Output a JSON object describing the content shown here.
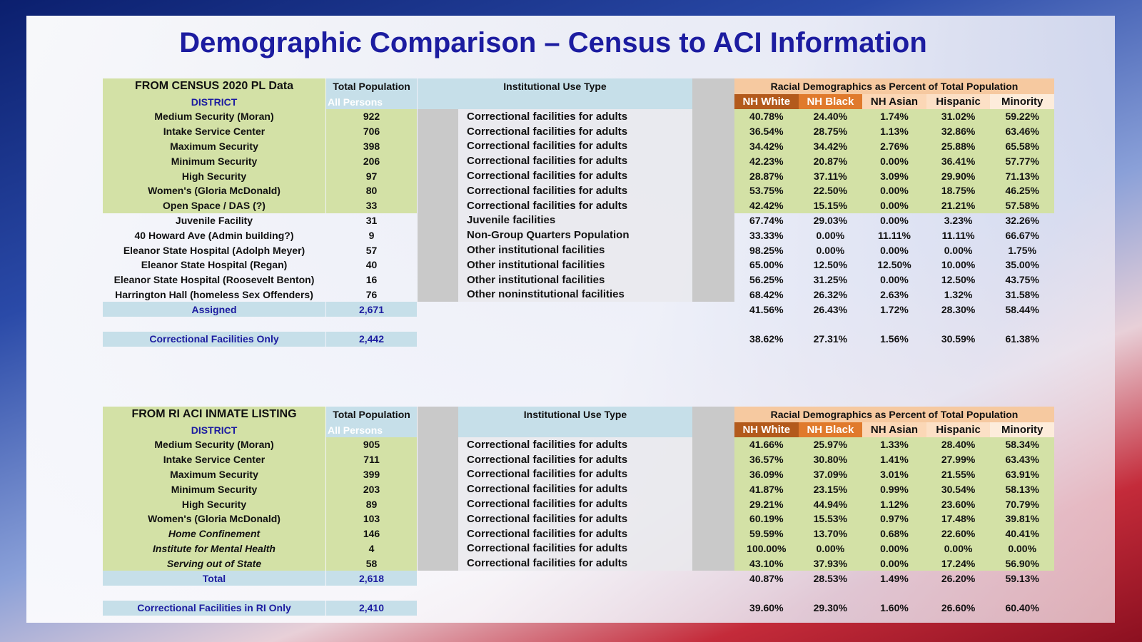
{
  "title": "Demographic Comparison – Census to ACI Information",
  "tables": [
    {
      "heading": "FROM CENSUS 2020 PL Data",
      "total_population": "Total Population",
      "institutional_use_type": "Institutional Use Type",
      "racial_heading": "Racial Demographics as Percent of  Total Population",
      "district": "DISTRICT",
      "all_persons": "All Persons",
      "columns": [
        "NH White",
        "NH Black",
        "NH Asian",
        "Hispanic",
        "Minority"
      ],
      "rows": [
        [
          "Medium Security (Moran)",
          "922",
          "Correctional facilities for adults",
          "40.78%",
          "24.40%",
          "1.74%",
          "31.02%",
          "59.22%"
        ],
        [
          "Intake Service Center",
          "706",
          "Correctional facilities for adults",
          "36.54%",
          "28.75%",
          "1.13%",
          "32.86%",
          "63.46%"
        ],
        [
          "Maximum Security",
          "398",
          "Correctional facilities for adults",
          "34.42%",
          "34.42%",
          "2.76%",
          "25.88%",
          "65.58%"
        ],
        [
          "Minimum Security",
          "206",
          "Correctional facilities for adults",
          "42.23%",
          "20.87%",
          "0.00%",
          "36.41%",
          "57.77%"
        ],
        [
          "High Security",
          "97",
          "Correctional facilities for adults",
          "28.87%",
          "37.11%",
          "3.09%",
          "29.90%",
          "71.13%"
        ],
        [
          "Women's (Gloria McDonald)",
          "80",
          "Correctional facilities for adults",
          "53.75%",
          "22.50%",
          "0.00%",
          "18.75%",
          "46.25%"
        ],
        [
          "Open Space / DAS (?)",
          "33",
          "Correctional facilities for adults",
          "42.42%",
          "15.15%",
          "0.00%",
          "21.21%",
          "57.58%"
        ],
        [
          "Juvenile Facility",
          "31",
          "Juvenile facilities",
          "67.74%",
          "29.03%",
          "0.00%",
          "3.23%",
          "32.26%"
        ],
        [
          "40 Howard Ave (Admin building?)",
          "9",
          "Non-Group Quarters Population",
          "33.33%",
          "0.00%",
          "11.11%",
          "11.11%",
          "66.67%"
        ],
        [
          "Eleanor State Hospital (Adolph Meyer)",
          "57",
          "Other institutional facilities",
          "98.25%",
          "0.00%",
          "0.00%",
          "0.00%",
          "1.75%"
        ],
        [
          "Eleanor State Hospital (Regan)",
          "40",
          "Other institutional facilities",
          "65.00%",
          "12.50%",
          "12.50%",
          "10.00%",
          "35.00%"
        ],
        [
          "Eleanor State Hospital (Roosevelt Benton)",
          "16",
          "Other institutional facilities",
          "56.25%",
          "31.25%",
          "0.00%",
          "12.50%",
          "43.75%"
        ],
        [
          "Harrington Hall (homeless Sex Offenders)",
          "76",
          "Other noninstitutional facilities",
          "68.42%",
          "26.32%",
          "2.63%",
          "1.32%",
          "31.58%"
        ]
      ],
      "summary": [
        [
          "Assigned",
          "2,671",
          "41.56%",
          "26.43%",
          "1.72%",
          "28.30%",
          "58.44%"
        ],
        [
          "Correctional Facilities Only",
          "2,442",
          "38.62%",
          "27.31%",
          "1.56%",
          "30.59%",
          "61.38%"
        ]
      ]
    },
    {
      "heading": "FROM RI ACI INMATE LISTING",
      "total_population": "Total Population",
      "institutional_use_type": "Institutional Use Type",
      "racial_heading": "Racial Demographics as Percent of  Total Population",
      "district": "DISTRICT",
      "all_persons": "All Persons",
      "columns": [
        "NH White",
        "NH Black",
        "NH Asian",
        "Hispanic",
        "Minority"
      ],
      "rows": [
        [
          "Medium Security (Moran)",
          "905",
          "Correctional facilities for adults",
          "41.66%",
          "25.97%",
          "1.33%",
          "28.40%",
          "58.34%"
        ],
        [
          "Intake Service Center",
          "711",
          "Correctional facilities for adults",
          "36.57%",
          "30.80%",
          "1.41%",
          "27.99%",
          "63.43%"
        ],
        [
          "Maximum Security",
          "399",
          "Correctional facilities for adults",
          "36.09%",
          "37.09%",
          "3.01%",
          "21.55%",
          "63.91%"
        ],
        [
          "Minimum Security",
          "203",
          "Correctional facilities for adults",
          "41.87%",
          "23.15%",
          "0.99%",
          "30.54%",
          "58.13%"
        ],
        [
          "High Security",
          "89",
          "Correctional facilities for adults",
          "29.21%",
          "44.94%",
          "1.12%",
          "23.60%",
          "70.79%"
        ],
        [
          "Women's (Gloria McDonald)",
          "103",
          "Correctional facilities for adults",
          "60.19%",
          "15.53%",
          "0.97%",
          "17.48%",
          "39.81%"
        ],
        [
          "Home Confinement",
          "146",
          "Correctional facilities for adults",
          "59.59%",
          "13.70%",
          "0.68%",
          "22.60%",
          "40.41%"
        ],
        [
          "Institute for Mental Health",
          "4",
          "Correctional facilities for adults",
          "100.00%",
          "0.00%",
          "0.00%",
          "0.00%",
          "0.00%"
        ],
        [
          "Serving out of State",
          "58",
          "Correctional facilities for adults",
          "43.10%",
          "37.93%",
          "0.00%",
          "17.24%",
          "56.90%"
        ]
      ],
      "summary": [
        [
          "Total",
          "2,618",
          "40.87%",
          "28.53%",
          "1.49%",
          "26.20%",
          "59.13%"
        ],
        [
          "Correctional Facilities in RI Only",
          "2,410",
          "39.60%",
          "29.30%",
          "1.60%",
          "26.60%",
          "60.40%"
        ]
      ]
    }
  ]
}
